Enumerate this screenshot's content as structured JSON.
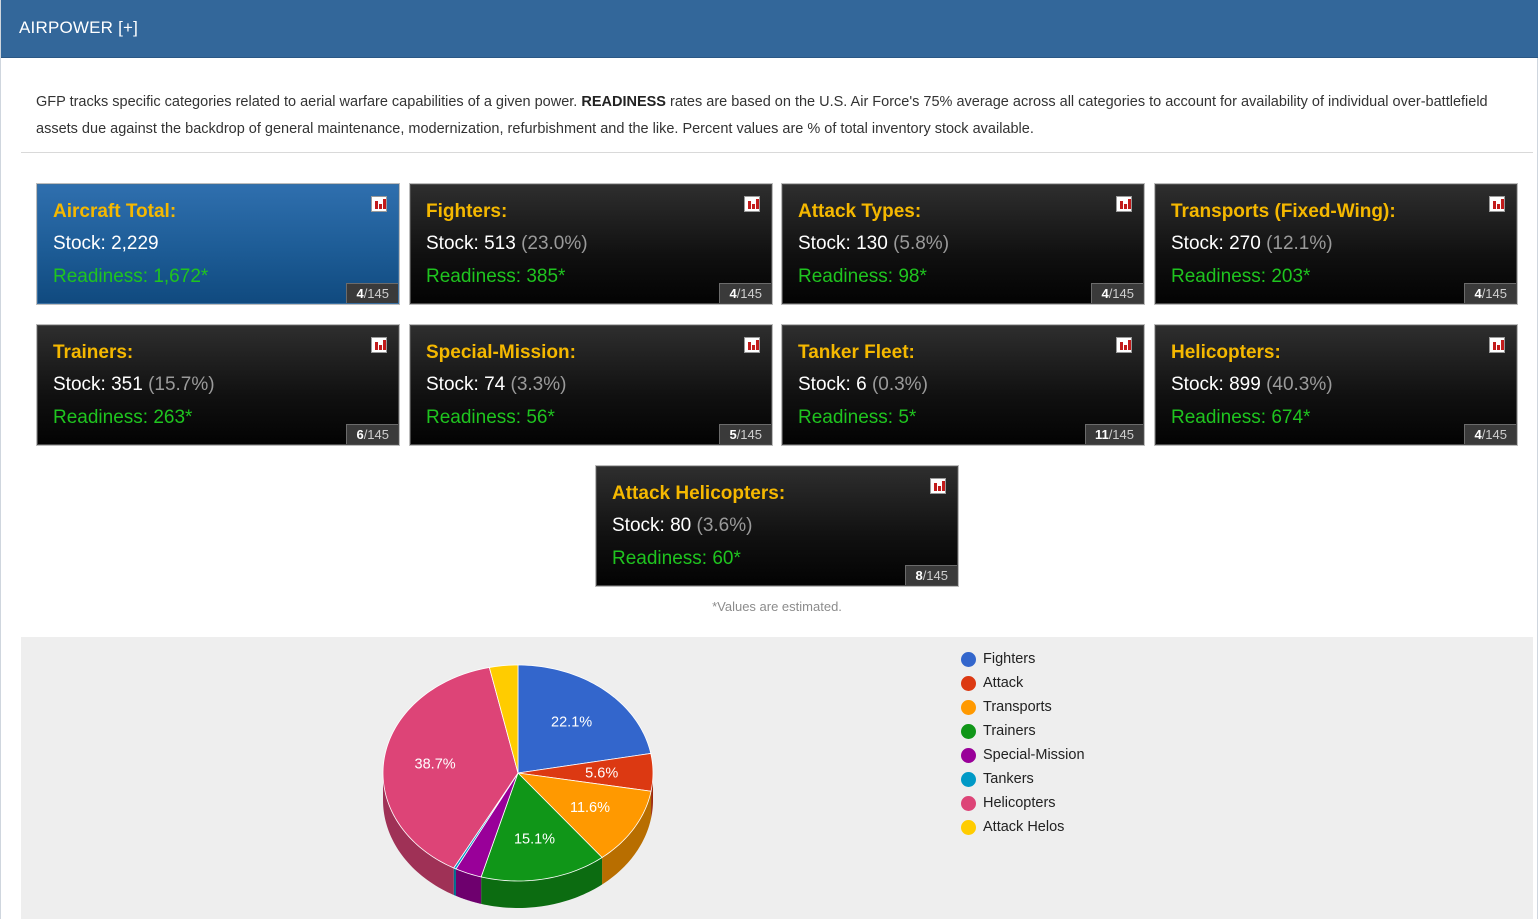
{
  "header": {
    "title": "AIRPOWER [+]"
  },
  "intro": {
    "part1": "GFP tracks specific categories related to aerial warfare capabilities of a given power. ",
    "bold": "READINESS",
    "part2": " rates are based on the U.S. Air Force's 75% average across all categories to account for availability of individual over-battlefield assets due against the backdrop of general maintenance, modernization, refurbishment and the like. Percent values are % of total inventory stock available."
  },
  "cards": [
    {
      "label": "Aircraft Total:",
      "stock": "Stock: 2,229",
      "pct": "",
      "readiness": "Readiness: 1,672*",
      "rank": "4",
      "of": "/145",
      "highlight": true
    },
    {
      "label": "Fighters:",
      "stock": "Stock: 513",
      "pct": "(23.0%)",
      "readiness": "Readiness: 385*",
      "rank": "4",
      "of": "/145"
    },
    {
      "label": "Attack Types:",
      "stock": "Stock: 130",
      "pct": "(5.8%)",
      "readiness": "Readiness: 98*",
      "rank": "4",
      "of": "/145"
    },
    {
      "label": "Transports (Fixed-Wing):",
      "stock": "Stock: 270",
      "pct": "(12.1%)",
      "readiness": "Readiness: 203*",
      "rank": "4",
      "of": "/145"
    },
    {
      "label": "Trainers:",
      "stock": "Stock: 351",
      "pct": "(15.7%)",
      "readiness": "Readiness: 263*",
      "rank": "6",
      "of": "/145"
    },
    {
      "label": "Special-Mission:",
      "stock": "Stock: 74",
      "pct": "(3.3%)",
      "readiness": "Readiness: 56*",
      "rank": "5",
      "of": "/145"
    },
    {
      "label": "Tanker Fleet:",
      "stock": "Stock: 6",
      "pct": "(0.3%)",
      "readiness": "Readiness: 5*",
      "rank": "11",
      "of": "/145"
    },
    {
      "label": "Helicopters:",
      "stock": "Stock: 899",
      "pct": "(40.3%)",
      "readiness": "Readiness: 674*",
      "rank": "4",
      "of": "/145"
    },
    {
      "label": "Attack Helicopters:",
      "stock": "Stock: 80",
      "pct": "(3.6%)",
      "readiness": "Readiness: 60*",
      "rank": "8",
      "of": "/145"
    }
  ],
  "footnote": "*Values are estimated.",
  "colors": {
    "header_bg": "#33679a",
    "label_gold": "#f5b800",
    "readiness_green": "#1fc41f"
  },
  "chart_data": {
    "type": "pie",
    "style": "3d",
    "categories": [
      "Fighters",
      "Attack",
      "Transports",
      "Trainers",
      "Special-Mission",
      "Tankers",
      "Helicopters",
      "Attack Helos"
    ],
    "values": [
      22.1,
      5.6,
      11.6,
      15.1,
      3.2,
      0.3,
      38.7,
      3.4
    ],
    "data_labels": [
      "22.1%",
      "5.6%",
      "11.6%",
      "15.1%",
      "",
      "",
      "38.7%",
      ""
    ],
    "colors": [
      "#3366cc",
      "#dc3912",
      "#ff9900",
      "#109618",
      "#990099",
      "#0099c6",
      "#dd4477",
      "#ffcc00"
    ],
    "legend_position": "right"
  }
}
